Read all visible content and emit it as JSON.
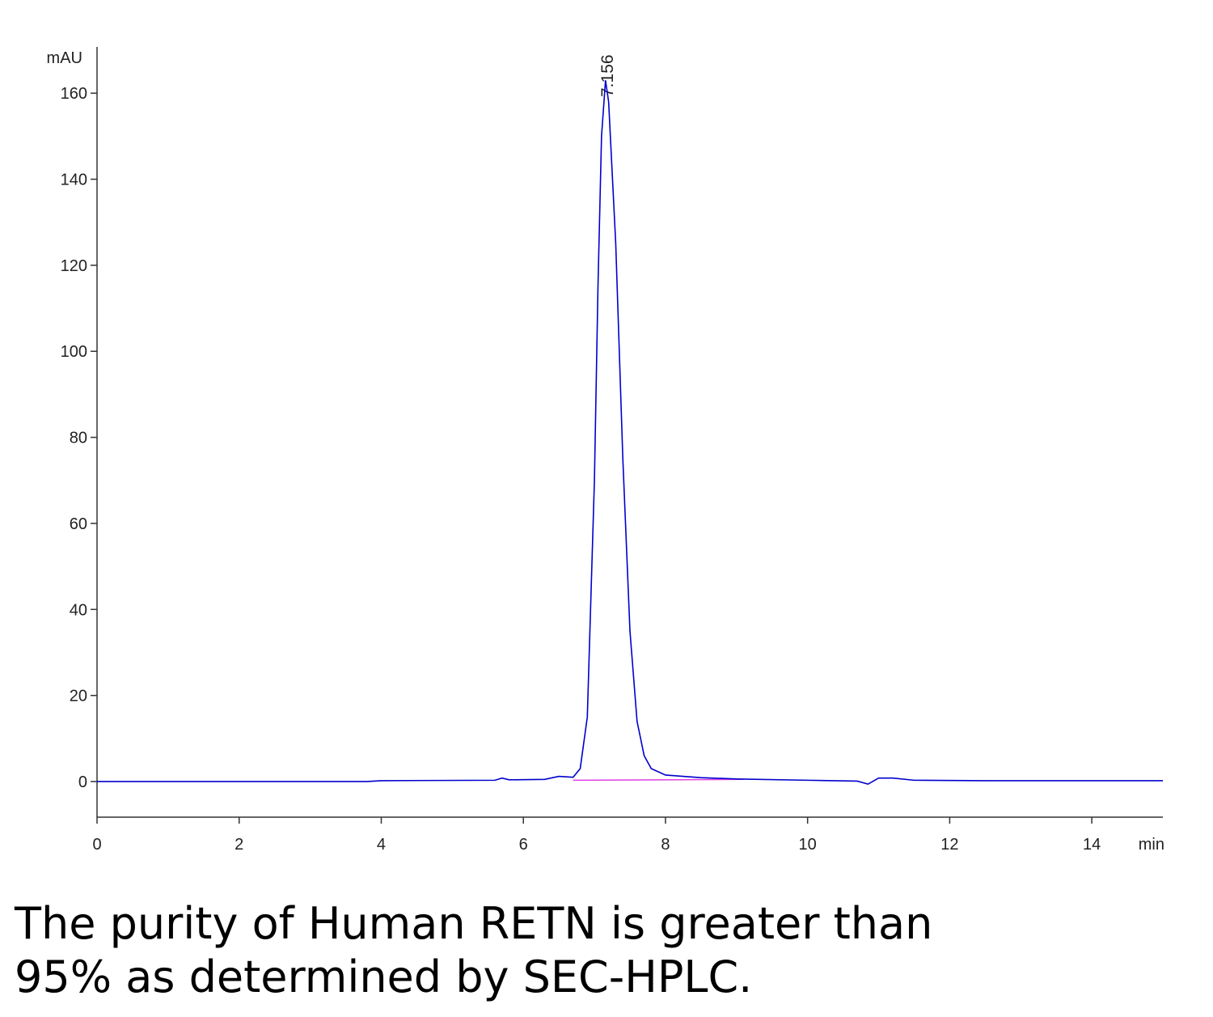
{
  "chart_data": {
    "type": "line",
    "y_label": "mAU",
    "x_label": "min",
    "peak_label": "7.156",
    "caption": [
      "The purity of Human RETN is greater than",
      "95% as determined by SEC-HPLC."
    ],
    "x": [
      0,
      3.8,
      4.0,
      5.6,
      5.7,
      5.8,
      6.3,
      6.5,
      6.7,
      6.8,
      6.9,
      7.0,
      7.05,
      7.1,
      7.156,
      7.2,
      7.3,
      7.4,
      7.5,
      7.6,
      7.7,
      7.8,
      8.0,
      8.5,
      9.0,
      10.0,
      10.7,
      10.85,
      11.0,
      11.2,
      11.5,
      12.5,
      15
    ],
    "series": [
      {
        "color": "#0000cc",
        "values": [
          0,
          0,
          0.2,
          0.3,
          0.8,
          0.4,
          0.5,
          1.2,
          1.0,
          3,
          15,
          70,
          115,
          150,
          163,
          158,
          125,
          75,
          35,
          14,
          6,
          3,
          1.5,
          0.9,
          0.6,
          0.3,
          0.1,
          -0.6,
          0.8,
          0.8,
          0.3,
          0.2,
          0.2
        ]
      }
    ],
    "baseline": {
      "color": "#e040e0",
      "x": [
        6.7,
        9.1
      ],
      "values": [
        0.3,
        0.5
      ]
    },
    "xlim": [
      0,
      15
    ],
    "ylim": [
      -8,
      170
    ],
    "xticks": [
      0,
      2,
      4,
      6,
      8,
      10,
      12,
      14
    ],
    "yticks": [
      0,
      20,
      40,
      60,
      80,
      100,
      120,
      140,
      160
    ]
  }
}
